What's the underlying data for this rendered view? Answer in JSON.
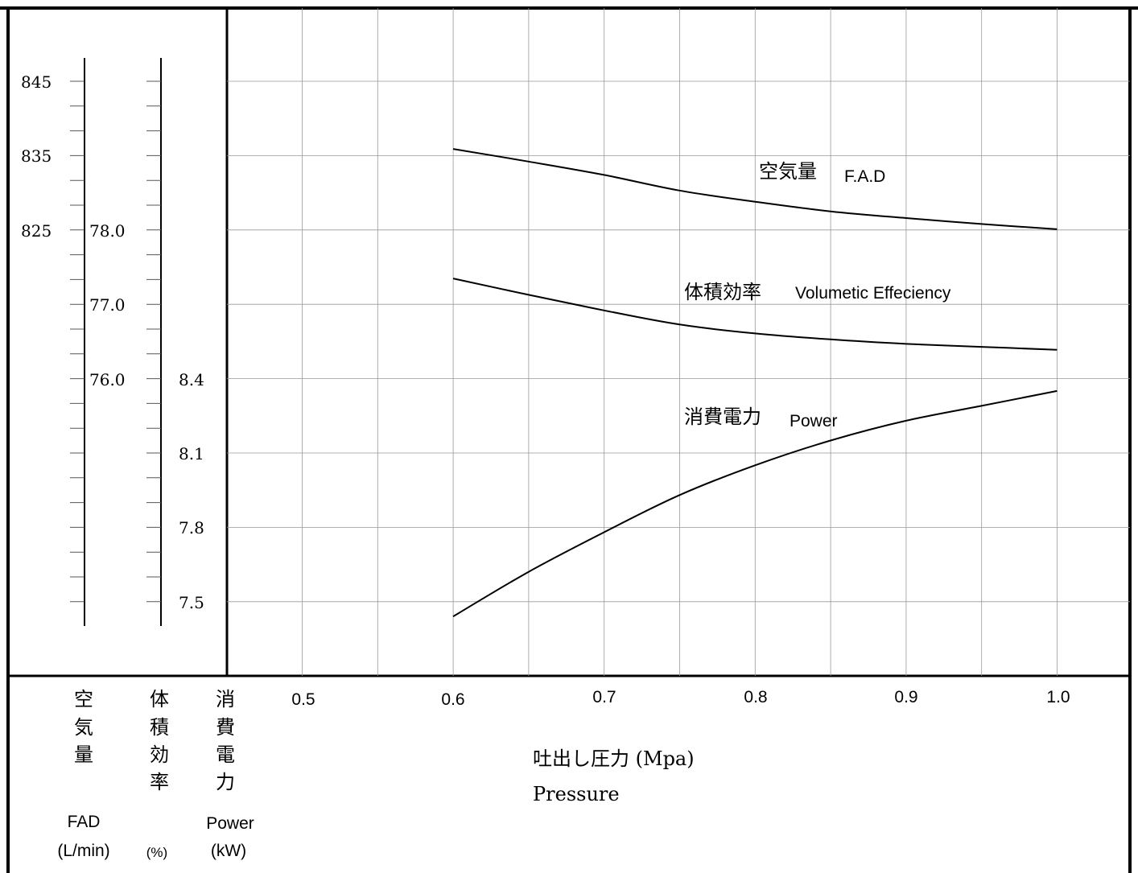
{
  "chart_data": {
    "type": "line",
    "x": [
      0.6,
      0.65,
      0.7,
      0.75,
      0.8,
      0.85,
      0.9,
      0.95,
      1.0
    ],
    "xlim": [
      0.4,
      1.05
    ],
    "x_ticks": [
      "0.5",
      "0.6",
      "0.7",
      "0.8",
      "0.9",
      "1.0"
    ],
    "xlabel_jp": "吐出し圧力 (Mpa)",
    "xlabel_en": "Pressure",
    "series": [
      {
        "axis": "fad",
        "name_jp": "空気量",
        "name_en": "F.A.D",
        "values": [
          835.9,
          834.2,
          832.4,
          830.3,
          828.8,
          827.5,
          826.6,
          825.8,
          825.1
        ]
      },
      {
        "axis": "eff",
        "name_jp": "体積効率",
        "name_en": "Volumetic Effeciency",
        "values": [
          77.35,
          77.13,
          76.92,
          76.73,
          76.61,
          76.53,
          76.47,
          76.43,
          76.39
        ]
      },
      {
        "axis": "power",
        "name_jp": "消費電力",
        "name_en": "Power",
        "values": [
          7.44,
          7.62,
          7.78,
          7.93,
          8.05,
          8.15,
          8.23,
          8.29,
          8.35
        ]
      }
    ],
    "axes": [
      {
        "id": "fad",
        "title_chars": [
          "空",
          "気",
          "量"
        ],
        "title_en": "FAD",
        "unit": "(L/min)",
        "ticks": [
          "845",
          "835",
          "825"
        ]
      },
      {
        "id": "eff",
        "title_chars": [
          "体",
          "積",
          "効",
          "率"
        ],
        "unit": "(%)",
        "ticks": [
          "78.0",
          "77.0",
          "76.0"
        ]
      },
      {
        "id": "power",
        "title_chars": [
          "消",
          "費",
          "電",
          "力"
        ],
        "title_en": "Power",
        "unit": "(kW)",
        "ticks": [
          "8.4",
          "8.1",
          "7.8",
          "7.5"
        ]
      }
    ],
    "grid": true
  }
}
